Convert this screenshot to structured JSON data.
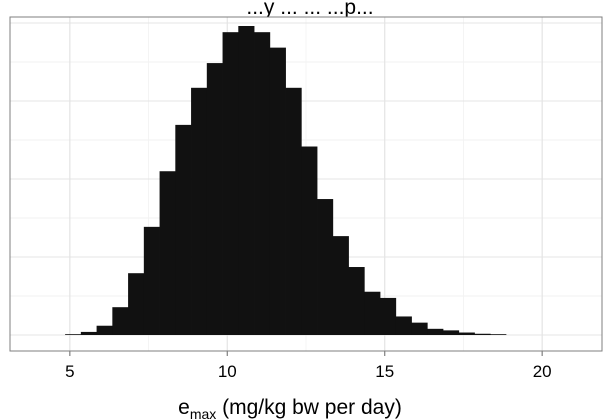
{
  "chart_data": {
    "type": "bar",
    "title": "...y ... ... ...p...",
    "xlabel_main": "e",
    "xlabel_sub": "max",
    "xlabel_rest": " (mg/kg bw per day)",
    "ylabel": "",
    "x_ticks": [
      5,
      10,
      15,
      20
    ],
    "x_tick_labels": [
      "5",
      "10",
      "15",
      "20"
    ],
    "xlim": [
      3.1,
      21.9
    ],
    "ylim": [
      0,
      1
    ],
    "grid": true,
    "bins": [
      {
        "x0": 4.85,
        "x1": 5.35,
        "value": 0.0
      },
      {
        "x0": 5.35,
        "x1": 5.85,
        "value": 0.01
      },
      {
        "x0": 5.85,
        "x1": 6.35,
        "value": 0.03
      },
      {
        "x0": 6.35,
        "x1": 6.85,
        "value": 0.09
      },
      {
        "x0": 6.85,
        "x1": 7.35,
        "value": 0.2
      },
      {
        "x0": 7.35,
        "x1": 7.85,
        "value": 0.35
      },
      {
        "x0": 7.85,
        "x1": 8.35,
        "value": 0.53
      },
      {
        "x0": 8.35,
        "x1": 8.85,
        "value": 0.68
      },
      {
        "x0": 8.85,
        "x1": 9.35,
        "value": 0.8
      },
      {
        "x0": 9.35,
        "x1": 9.85,
        "value": 0.88
      },
      {
        "x0": 9.85,
        "x1": 10.35,
        "value": 0.98
      },
      {
        "x0": 10.35,
        "x1": 10.85,
        "value": 1.0
      },
      {
        "x0": 10.85,
        "x1": 11.35,
        "value": 0.98
      },
      {
        "x0": 11.35,
        "x1": 11.85,
        "value": 0.93
      },
      {
        "x0": 11.85,
        "x1": 12.35,
        "value": 0.8
      },
      {
        "x0": 12.35,
        "x1": 12.85,
        "value": 0.61
      },
      {
        "x0": 12.85,
        "x1": 13.35,
        "value": 0.44
      },
      {
        "x0": 13.35,
        "x1": 13.85,
        "value": 0.32
      },
      {
        "x0": 13.85,
        "x1": 14.35,
        "value": 0.22
      },
      {
        "x0": 14.35,
        "x1": 14.85,
        "value": 0.14
      },
      {
        "x0": 14.85,
        "x1": 15.35,
        "value": 0.12
      },
      {
        "x0": 15.35,
        "x1": 15.85,
        "value": 0.06
      },
      {
        "x0": 15.85,
        "x1": 16.35,
        "value": 0.04
      },
      {
        "x0": 16.35,
        "x1": 16.85,
        "value": 0.02
      },
      {
        "x0": 16.85,
        "x1": 17.35,
        "value": 0.015
      },
      {
        "x0": 17.35,
        "x1": 17.85,
        "value": 0.008
      },
      {
        "x0": 17.85,
        "x1": 18.35,
        "value": 0.004
      },
      {
        "x0": 18.35,
        "x1": 18.85,
        "value": 0.002
      }
    ],
    "colors": {
      "bar": "#111111",
      "panel_background": "#ffffff",
      "grid_major": "#e4e4e4",
      "grid_minor": "#f2f2f2",
      "border": "#7f7f7f"
    }
  }
}
